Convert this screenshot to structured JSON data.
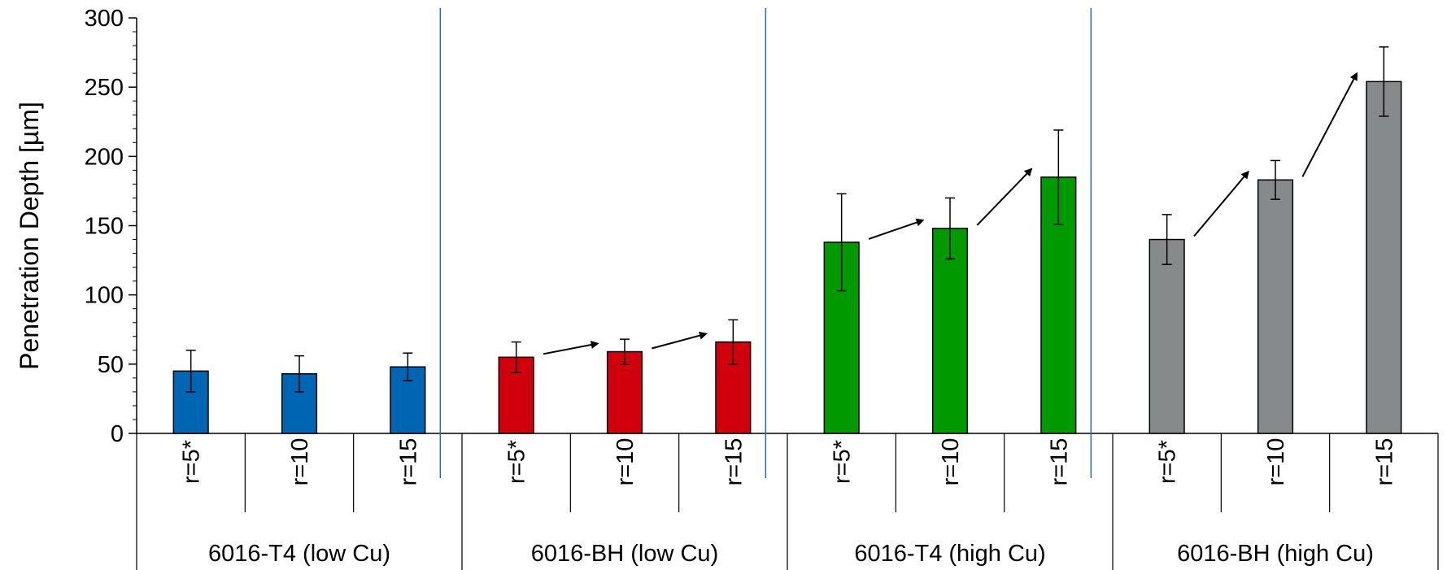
{
  "chart_data": {
    "type": "bar",
    "title": "",
    "ylabel": "Penetration Depth [µm]",
    "ylim": [
      0,
      300
    ],
    "yticks": [
      "0",
      "50",
      "100",
      "150",
      "200",
      "250",
      "300"
    ],
    "groups": [
      {
        "name": "6016-T4 (low Cu)",
        "color": "#0066b3",
        "categories": [
          "r=5*",
          "r=10",
          "r=15"
        ],
        "values": [
          45,
          43,
          48
        ],
        "errors": [
          15,
          13,
          10
        ],
        "arrows": []
      },
      {
        "name": "6016-BH (low Cu)",
        "color": "#d0000d",
        "categories": [
          "r=5*",
          "r=10",
          "r=15"
        ],
        "values": [
          55,
          59,
          66
        ],
        "errors": [
          11,
          9,
          16
        ],
        "arrows": [
          [
            0,
            1
          ],
          [
            1,
            2
          ]
        ]
      },
      {
        "name": "6016-T4 (high Cu)",
        "color": "#009900",
        "categories": [
          "r=5*",
          "r=10",
          "r=15"
        ],
        "values": [
          138,
          148,
          185
        ],
        "errors": [
          35,
          22,
          34
        ],
        "arrows": [
          [
            0,
            1
          ],
          [
            1,
            2
          ]
        ]
      },
      {
        "name": "6016-BH (high Cu)",
        "color": "#878a8b",
        "categories": [
          "r=5*",
          "r=10",
          "r=15"
        ],
        "values": [
          140,
          183,
          254
        ],
        "errors": [
          18,
          14,
          25
        ],
        "arrows": [
          [
            0,
            1
          ],
          [
            1,
            2
          ]
        ]
      }
    ],
    "separator_color": "#1f6fb8",
    "grid": false,
    "legend": "none"
  }
}
